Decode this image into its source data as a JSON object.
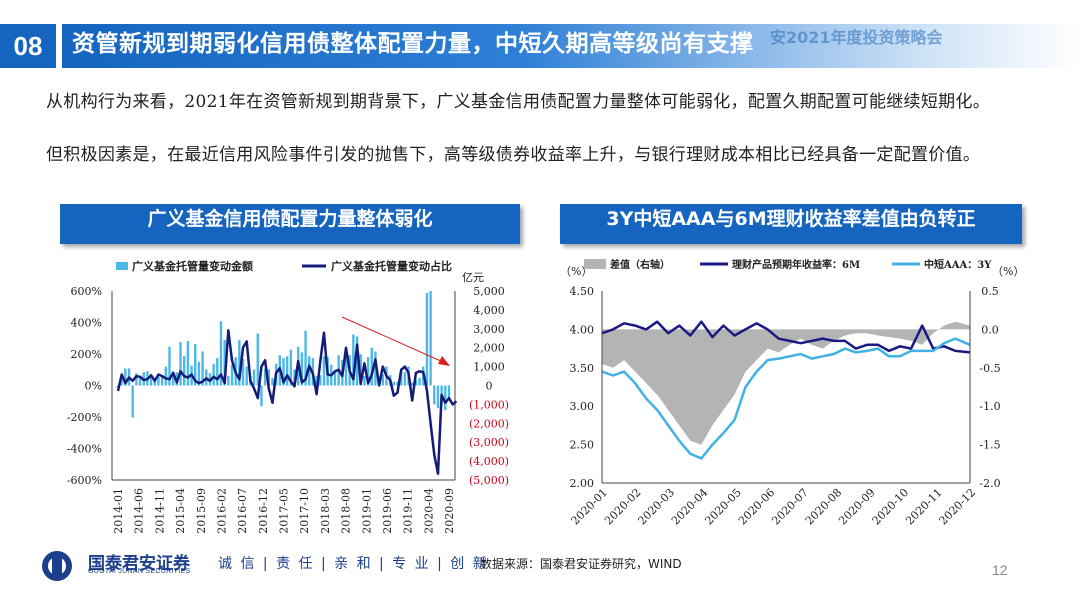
{
  "header": {
    "number": "08",
    "title": "资管新规到期弱化信用债整体配置力量，中短久期高等级尚有支撑",
    "ghost": "安2021年度投资策略会"
  },
  "paragraphs": [
    "从机构行为来看，2021年在资管新规到期背景下，广义基金信用债配置力量整体可能弱化，配置久期配置可能继续短期化。",
    "但积极因素是，在最近信用风险事件引发的抛售下，高等级债券收益率上升，与银行理财成本相比已经具备一定配置价值。"
  ],
  "chart_data": [
    {
      "type": "bar",
      "title": "广义基金信用债配置力量整体弱化",
      "legend": [
        "广义基金托管量变动金额",
        "广义基金托管量变动占比"
      ],
      "yleft_unit": "",
      "yright_unit": "亿元",
      "yleft_ticks": [
        "600%",
        "400%",
        "200%",
        "0%",
        "-200%",
        "-400%",
        "-600%"
      ],
      "yright_ticks": [
        "5,000",
        "4,000",
        "3,000",
        "2,000",
        "1,000",
        "0",
        "(1,000)",
        "(2,000)",
        "(3,000)",
        "(4,000)",
        "(5,000)"
      ],
      "ylim_left": [
        -600,
        600
      ],
      "ylim_right": [
        -5000,
        5000
      ],
      "x_labels": [
        "2014-01",
        "2014-06",
        "2014-11",
        "2015-04",
        "2015-09",
        "2016-02",
        "2016-07",
        "2016-12",
        "2017-05",
        "2017-10",
        "2018-03",
        "2018-08",
        "2019-01",
        "2019-06",
        "2019-11",
        "2020-04",
        "2020-09"
      ],
      "bars_amount": [
        -150,
        300,
        900,
        900,
        -1700,
        650,
        400,
        700,
        750,
        600,
        300,
        450,
        550,
        1000,
        2050,
        750,
        700,
        2300,
        1550,
        2350,
        1050,
        2200,
        1250,
        1800,
        850,
        650,
        1150,
        1450,
        3400,
        2400,
        500,
        1100,
        1500,
        2400,
        1400,
        1000,
        500,
        850,
        2750,
        -1100,
        900,
        850,
        400,
        1150,
        1600,
        1450,
        1550,
        1900,
        850,
        2050,
        1750,
        2900,
        1550,
        1450,
        500,
        550,
        1550,
        1500,
        1100,
        700,
        1600,
        1350,
        1600,
        1600,
        2700,
        2600,
        1650,
        500,
        1500,
        2000,
        1800,
        450,
        600,
        1000,
        550,
        200,
        200,
        900,
        700,
        1000,
        150,
        300,
        400,
        1000,
        4900,
        5000,
        -1000,
        -1200,
        -1050,
        -1300,
        -700
      ],
      "line_ratio": [
        -35,
        70,
        15,
        50,
        30,
        60,
        55,
        35,
        40,
        65,
        30,
        70,
        60,
        45,
        40,
        80,
        20,
        90,
        60,
        50,
        70,
        30,
        15,
        25,
        45,
        30,
        55,
        40,
        70,
        15,
        350,
        160,
        80,
        40,
        240,
        280,
        30,
        -20,
        -80,
        120,
        160,
        -20,
        -110,
        80,
        110,
        20,
        65,
        25,
        -5,
        155,
        20,
        40,
        125,
        75,
        -55,
        155,
        335,
        70,
        65,
        90,
        100,
        60,
        240,
        90,
        40,
        260,
        10,
        140,
        15,
        70,
        165,
        0,
        120,
        60,
        35,
        -65,
        -45,
        100,
        120,
        80,
        -95,
        80,
        90,
        85,
        -30,
        -240,
        -440,
        -560,
        -60,
        -110,
        -80,
        -120,
        -100
      ],
      "colors": {
        "bars": "#4db7e6",
        "line": "#141c78",
        "right_axis": "#d0021b",
        "arrow": "#d81e1e"
      }
    },
    {
      "type": "line",
      "title": "3Y中短AAA与6M理财收益率差值由负转正",
      "legend": [
        "差值（右轴）",
        "理财产品预期年收益率：6M",
        "中短AAA：3Y"
      ],
      "yleft_unit": "（%）",
      "yright_unit": "（%）",
      "yleft_ticks": [
        "4.50",
        "4.00",
        "3.50",
        "3.00",
        "2.50",
        "2.00"
      ],
      "yright_ticks": [
        "0.5",
        "0.0",
        "-0.5",
        "-1.0",
        "-1.5",
        "-2.0"
      ],
      "ylim_left": [
        2.0,
        4.5
      ],
      "ylim_right": [
        -2.0,
        0.5
      ],
      "x_labels": [
        "2020-01",
        "2020-02",
        "2020-03",
        "2020-04",
        "2020-05",
        "2020-06",
        "2020-07",
        "2020-08",
        "2020-09",
        "2020-10",
        "2020-11",
        "2020-12"
      ],
      "x_frac": [
        0,
        0.03,
        0.06,
        0.09,
        0.12,
        0.15,
        0.18,
        0.21,
        0.24,
        0.27,
        0.3,
        0.33,
        0.36,
        0.39,
        0.42,
        0.45,
        0.48,
        0.51,
        0.54,
        0.57,
        0.6,
        0.63,
        0.66,
        0.69,
        0.72,
        0.75,
        0.78,
        0.81,
        0.84,
        0.87,
        0.9,
        0.93,
        0.96,
        1.0
      ],
      "series": [
        {
          "name": "差值（右轴）",
          "values": [
            -0.45,
            -0.5,
            -0.4,
            -0.55,
            -0.7,
            -0.85,
            -1.05,
            -1.25,
            -1.45,
            -1.5,
            -1.25,
            -1.05,
            -0.85,
            -0.55,
            -0.4,
            -0.25,
            -0.3,
            -0.2,
            -0.12,
            -0.2,
            -0.25,
            -0.15,
            -0.08,
            -0.05,
            -0.05,
            -0.08,
            -0.1,
            -0.12,
            -0.15,
            -0.2,
            -0.05,
            0.05,
            0.1,
            0.05
          ]
        },
        {
          "name": "理财产品预期年收益率：6M",
          "values": [
            3.95,
            4.0,
            4.08,
            4.05,
            4.0,
            4.1,
            3.95,
            4.05,
            3.92,
            4.1,
            3.9,
            4.05,
            3.92,
            4.0,
            4.08,
            4.0,
            3.88,
            3.85,
            3.82,
            3.85,
            3.88,
            3.85,
            3.85,
            3.75,
            3.8,
            3.8,
            3.72,
            3.78,
            3.75,
            4.05,
            3.75,
            3.78,
            3.72,
            3.7
          ]
        },
        {
          "name": "中短AAA：3Y",
          "values": [
            3.45,
            3.4,
            3.45,
            3.3,
            3.1,
            2.95,
            2.75,
            2.55,
            2.38,
            2.32,
            2.5,
            2.65,
            2.82,
            3.25,
            3.45,
            3.6,
            3.62,
            3.65,
            3.68,
            3.62,
            3.65,
            3.68,
            3.75,
            3.7,
            3.72,
            3.75,
            3.65,
            3.65,
            3.72,
            3.72,
            3.72,
            3.82,
            3.88,
            3.8
          ]
        }
      ],
      "colors": {
        "diff": "#b4b4b4",
        "wm": "#1b1a82",
        "aaa": "#3fb1e4"
      }
    }
  ],
  "footer": {
    "company": "国泰君安证券",
    "company_en": "GUOTAI JUNAN SECURITIES",
    "slogan": "诚 信 | 责 任 | 亲 和 | 专 业 | 创 新",
    "source": "数据来源：国泰君安证券研究，WIND",
    "page": "12"
  }
}
